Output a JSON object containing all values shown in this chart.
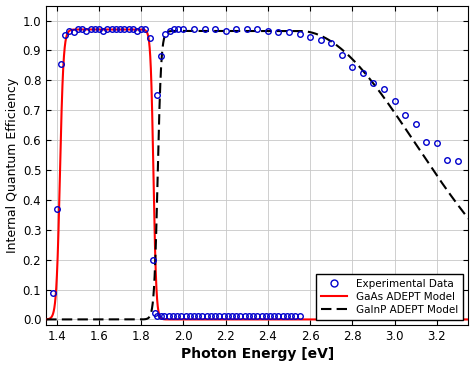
{
  "title": "",
  "xlabel": "Photon Energy [eV]",
  "ylabel": "Internal Quantum Efficiency",
  "xlim": [
    1.35,
    3.35
  ],
  "ylim": [
    -0.02,
    1.05
  ],
  "xticks": [
    1.4,
    1.6,
    1.8,
    2.0,
    2.2,
    2.4,
    2.6,
    2.8,
    3.0,
    3.2
  ],
  "yticks": [
    0.0,
    0.1,
    0.2,
    0.3,
    0.4,
    0.5,
    0.6,
    0.7,
    0.8,
    0.9,
    1.0
  ],
  "gaas_model_color": "#ff0000",
  "gainp_model_color": "#000000",
  "exp_data_color": "#0000cc",
  "background_color": "#ffffff",
  "grid_color": "#c8c8c8",
  "legend_labels": [
    "Experimental Data",
    "GaAs ADEPT Model",
    "GaInP ADEPT Model"
  ],
  "exp_x": [
    1.38,
    1.4,
    1.42,
    1.44,
    1.46,
    1.48,
    1.5,
    1.52,
    1.54,
    1.56,
    1.58,
    1.6,
    1.62,
    1.64,
    1.66,
    1.68,
    1.7,
    1.72,
    1.74,
    1.76,
    1.78,
    1.8,
    1.82,
    1.84,
    1.855,
    1.865,
    1.875,
    1.895,
    1.91,
    1.93,
    1.95,
    1.97,
    1.99,
    2.01,
    2.03,
    2.05,
    2.07,
    2.09,
    2.11,
    2.13,
    2.15,
    2.17,
    2.19,
    2.21,
    2.23,
    2.25,
    2.27,
    2.29,
    2.31,
    2.33,
    2.35,
    2.37,
    2.39,
    2.41,
    2.43,
    2.45,
    2.47,
    2.49,
    2.51,
    2.53,
    2.55,
    1.875,
    1.895,
    1.915,
    1.935,
    1.955,
    1.975,
    2.0,
    2.05,
    2.1,
    2.15,
    2.2,
    2.25,
    2.3,
    2.35,
    2.4,
    2.45,
    2.5,
    2.55,
    2.6,
    2.65,
    2.7,
    2.75,
    2.8,
    2.85,
    2.9,
    2.95,
    3.0,
    3.05,
    3.1,
    3.15,
    3.2,
    3.25,
    3.3
  ],
  "exp_y": [
    0.09,
    0.37,
    0.855,
    0.95,
    0.965,
    0.96,
    0.97,
    0.97,
    0.965,
    0.97,
    0.97,
    0.97,
    0.965,
    0.97,
    0.97,
    0.97,
    0.97,
    0.97,
    0.97,
    0.97,
    0.965,
    0.97,
    0.97,
    0.94,
    0.2,
    0.02,
    0.01,
    0.01,
    0.01,
    0.01,
    0.01,
    0.01,
    0.01,
    0.01,
    0.01,
    0.01,
    0.01,
    0.01,
    0.01,
    0.01,
    0.01,
    0.01,
    0.01,
    0.01,
    0.01,
    0.01,
    0.01,
    0.01,
    0.01,
    0.01,
    0.01,
    0.01,
    0.01,
    0.01,
    0.01,
    0.01,
    0.01,
    0.01,
    0.01,
    0.01,
    0.01,
    0.75,
    0.88,
    0.955,
    0.965,
    0.97,
    0.97,
    0.97,
    0.97,
    0.97,
    0.97,
    0.965,
    0.97,
    0.97,
    0.97,
    0.965,
    0.96,
    0.96,
    0.955,
    0.945,
    0.935,
    0.925,
    0.885,
    0.845,
    0.825,
    0.79,
    0.77,
    0.73,
    0.685,
    0.655,
    0.595,
    0.59,
    0.535,
    0.53
  ]
}
